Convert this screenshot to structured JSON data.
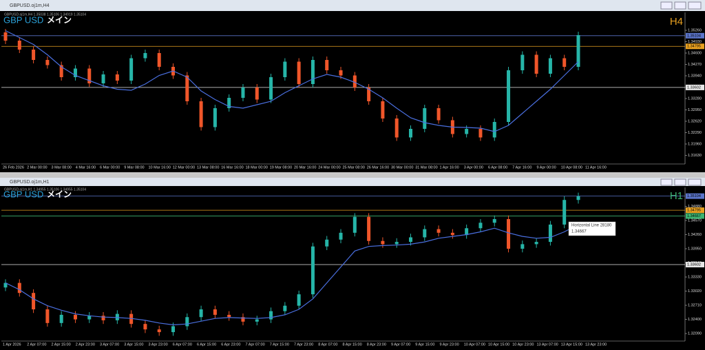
{
  "windows": [
    {
      "title": "GBPUSD.oj1m,H4",
      "info": "GBPUSD.oj1m,H4  1.35038 1.35106 1.34919 1.35104",
      "symbol": "GBP USD",
      "label": "メイン",
      "timeframe": "H4",
      "timeframe_color": "#e8a020",
      "ylim": [
        1.315,
        1.357
      ],
      "yticks": [
        {
          "value": 1.3526,
          "label": "1.35260"
        },
        {
          "value": 1.3493,
          "label": "1.34930"
        },
        {
          "value": 1.346,
          "label": "1.34600"
        },
        {
          "value": 1.3427,
          "label": "1.34270"
        },
        {
          "value": 1.3394,
          "label": "1.33940"
        },
        {
          "value": 1.3361,
          "label": "1.33610"
        },
        {
          "value": 1.3328,
          "label": "1.33280"
        },
        {
          "value": 1.3295,
          "label": "1.32950"
        },
        {
          "value": 1.3262,
          "label": "1.32620"
        },
        {
          "value": 1.3229,
          "label": "1.32290"
        },
        {
          "value": 1.3196,
          "label": "1.31960"
        },
        {
          "value": 1.3163,
          "label": "1.31630"
        }
      ],
      "xticks": [
        "26 Feb 2026",
        "2 Mar 00:00",
        "3 Mar 08:00",
        "4 Mar 16:00",
        "6 Mar 00:00",
        "9 Mar 08:00",
        "10 Mar 16:00",
        "12 Mar 00:00",
        "13 Mar 08:00",
        "16 Mar 16:00",
        "18 Mar 00:00",
        "19 Mar 08:00",
        "20 Mar 16:00",
        "24 Mar 00:00",
        "25 Mar 08:00",
        "26 Mar 16:00",
        "30 Mar 00:00",
        "31 Mar 08:00",
        "1 Apr 16:00",
        "3 Apr 00:00",
        "6 Apr 08:00",
        "7 Apr 16:00",
        "9 Apr 00:00",
        "10 Apr 08:00",
        "11 Apr 16:00"
      ],
      "open": [
        1.352,
        1.3496,
        1.347,
        1.344,
        1.3425,
        1.339,
        1.3415,
        1.3372,
        1.3398,
        1.338,
        1.3445,
        1.346,
        1.342,
        1.3395,
        1.332,
        1.3245,
        1.33,
        1.333,
        1.336,
        1.3325,
        1.339,
        1.3435,
        1.337,
        1.344,
        1.341,
        1.3395,
        1.336,
        1.332,
        1.327,
        1.3215,
        1.324,
        1.33,
        1.3265,
        1.3225,
        1.324,
        1.3215,
        1.326,
        1.341,
        1.3455,
        1.34,
        1.3445,
        1.342
      ],
      "high": [
        1.353,
        1.3506,
        1.348,
        1.345,
        1.3435,
        1.3425,
        1.3425,
        1.3408,
        1.3408,
        1.3455,
        1.347,
        1.347,
        1.343,
        1.3405,
        1.333,
        1.331,
        1.334,
        1.337,
        1.337,
        1.34,
        1.3445,
        1.3445,
        1.345,
        1.345,
        1.342,
        1.3405,
        1.337,
        1.333,
        1.328,
        1.325,
        1.331,
        1.331,
        1.3275,
        1.325,
        1.325,
        1.327,
        1.342,
        1.3465,
        1.3465,
        1.3455,
        1.3455,
        1.3522
      ],
      "low": [
        1.3486,
        1.346,
        1.343,
        1.3415,
        1.338,
        1.338,
        1.3362,
        1.3362,
        1.337,
        1.337,
        1.3435,
        1.341,
        1.3385,
        1.331,
        1.3235,
        1.3235,
        1.329,
        1.332,
        1.3315,
        1.3315,
        1.338,
        1.336,
        1.336,
        1.34,
        1.3385,
        1.335,
        1.331,
        1.326,
        1.3205,
        1.3205,
        1.323,
        1.3255,
        1.3215,
        1.3215,
        1.3205,
        1.3205,
        1.325,
        1.34,
        1.339,
        1.339,
        1.341,
        1.341
      ],
      "close": [
        1.3496,
        1.347,
        1.344,
        1.3425,
        1.339,
        1.3415,
        1.3372,
        1.3398,
        1.338,
        1.3445,
        1.346,
        1.342,
        1.3395,
        1.332,
        1.3245,
        1.33,
        1.333,
        1.336,
        1.3325,
        1.339,
        1.3435,
        1.337,
        1.344,
        1.341,
        1.3395,
        1.336,
        1.332,
        1.327,
        1.3215,
        1.324,
        1.33,
        1.3265,
        1.3225,
        1.324,
        1.3215,
        1.326,
        1.341,
        1.3455,
        1.34,
        1.3445,
        1.342,
        1.3512
      ],
      "ma": [
        1.3525,
        1.3505,
        1.3485,
        1.3455,
        1.342,
        1.3395,
        1.338,
        1.3365,
        1.3355,
        1.3352,
        1.337,
        1.3395,
        1.3408,
        1.339,
        1.335,
        1.3325,
        1.3305,
        1.33,
        1.331,
        1.332,
        1.3345,
        1.3365,
        1.3385,
        1.3398,
        1.339,
        1.3375,
        1.3355,
        1.333,
        1.33,
        1.3272,
        1.3258,
        1.325,
        1.3245,
        1.3244,
        1.3242,
        1.3232,
        1.325,
        1.3285,
        1.332,
        1.3355,
        1.3395,
        1.3435
      ],
      "hlines": [
        {
          "value": 1.35104,
          "color": "#5b74c9"
        },
        {
          "value": 1.34795,
          "color": "#e8a020"
        },
        {
          "value": 1.33602,
          "color": "#e6e6e6"
        }
      ]
    },
    {
      "title": "GBPUSD.oj1m,H1",
      "info": "GBPUSD.oj1m,H1  1.34955 1.35106 1.34955 1.35104",
      "symbol": "GBP USD",
      "label": "メイン",
      "timeframe": "H1",
      "timeframe_color": "#3cb371",
      "ylim": [
        1.3197,
        1.3525
      ],
      "yticks": [
        {
          "value": 1.3488,
          "label": "1.34880"
        },
        {
          "value": 1.3457,
          "label": "1.34570"
        },
        {
          "value": 1.3426,
          "label": "1.34260"
        },
        {
          "value": 1.3395,
          "label": "1.33950"
        },
        {
          "value": 1.3364,
          "label": "1.33640"
        },
        {
          "value": 1.3333,
          "label": "1.33330"
        },
        {
          "value": 1.3302,
          "label": "1.33020"
        },
        {
          "value": 1.3271,
          "label": "1.32710"
        },
        {
          "value": 1.324,
          "label": "1.32400"
        },
        {
          "value": 1.3209,
          "label": "1.32090"
        }
      ],
      "xticks": [
        "1 Apr 2026",
        "2 Apr 07:00",
        "2 Apr 15:00",
        "2 Apr 23:00",
        "3 Apr 07:00",
        "3 Apr 15:00",
        "3 Apr 23:00",
        "6 Apr 07:00",
        "6 Apr 15:00",
        "6 Apr 23:00",
        "7 Apr 07:00",
        "7 Apr 15:00",
        "7 Apr 23:00",
        "8 Apr 07:00",
        "8 Apr 15:00",
        "8 Apr 23:00",
        "9 Apr 07:00",
        "9 Apr 15:00",
        "9 Apr 23:00",
        "10 Apr 07:00",
        "10 Apr 15:00",
        "10 Apr 23:00",
        "13 Apr 07:00",
        "13 Apr 15:00",
        "13 Apr 23:00"
      ],
      "open": [
        1.331,
        1.332,
        1.3298,
        1.3262,
        1.3232,
        1.325,
        1.324,
        1.3248,
        1.3238,
        1.3252,
        1.323,
        1.3218,
        1.3212,
        1.3225,
        1.3245,
        1.3262,
        1.325,
        1.3245,
        1.3235,
        1.324,
        1.3258,
        1.327,
        1.3295,
        1.34,
        1.3415,
        1.343,
        1.3465,
        1.3412,
        1.3405,
        1.341,
        1.342,
        1.3438,
        1.343,
        1.3425,
        1.344,
        1.3452,
        1.346,
        1.3395,
        1.3405,
        1.341,
        1.3448,
        1.3502
      ],
      "high": [
        1.3328,
        1.3328,
        1.3306,
        1.327,
        1.3258,
        1.3258,
        1.3256,
        1.3256,
        1.326,
        1.326,
        1.3238,
        1.3226,
        1.3233,
        1.3253,
        1.327,
        1.327,
        1.3258,
        1.3253,
        1.3248,
        1.3266,
        1.3278,
        1.3303,
        1.3408,
        1.3423,
        1.3438,
        1.3473,
        1.3473,
        1.342,
        1.3418,
        1.3428,
        1.3446,
        1.3446,
        1.3438,
        1.3448,
        1.346,
        1.3468,
        1.3468,
        1.3413,
        1.3418,
        1.3456,
        1.351,
        1.3518
      ],
      "low": [
        1.3302,
        1.329,
        1.3254,
        1.3224,
        1.3224,
        1.3232,
        1.3232,
        1.323,
        1.323,
        1.3222,
        1.321,
        1.3204,
        1.3204,
        1.3217,
        1.3237,
        1.3242,
        1.3237,
        1.3227,
        1.3227,
        1.3232,
        1.325,
        1.3262,
        1.3287,
        1.3392,
        1.3407,
        1.3422,
        1.3404,
        1.3397,
        1.3397,
        1.3402,
        1.3412,
        1.3422,
        1.3417,
        1.3417,
        1.3432,
        1.3444,
        1.3387,
        1.3387,
        1.3397,
        1.3402,
        1.344,
        1.3494
      ],
      "close": [
        1.332,
        1.3298,
        1.3262,
        1.3232,
        1.325,
        1.324,
        1.3248,
        1.3238,
        1.3252,
        1.323,
        1.3218,
        1.3212,
        1.3225,
        1.3245,
        1.3262,
        1.325,
        1.3245,
        1.3235,
        1.324,
        1.3258,
        1.327,
        1.3295,
        1.34,
        1.3415,
        1.343,
        1.3465,
        1.3412,
        1.3405,
        1.341,
        1.342,
        1.3438,
        1.343,
        1.3425,
        1.344,
        1.3452,
        1.346,
        1.3395,
        1.3405,
        1.341,
        1.3448,
        1.3502,
        1.351
      ],
      "ma": [
        1.332,
        1.3305,
        1.3285,
        1.327,
        1.326,
        1.3252,
        1.3248,
        1.3245,
        1.3244,
        1.3242,
        1.3238,
        1.3232,
        1.3228,
        1.323,
        1.3236,
        1.3242,
        1.3244,
        1.3243,
        1.3242,
        1.3244,
        1.325,
        1.3262,
        1.3285,
        1.332,
        1.3355,
        1.339,
        1.34,
        1.3402,
        1.3403,
        1.3405,
        1.341,
        1.3418,
        1.3422,
        1.3426,
        1.3432,
        1.344,
        1.343,
        1.3422,
        1.3418,
        1.342,
        1.3432,
        1.3448
      ],
      "hlines": [
        {
          "value": 1.35104,
          "color": "#5b74c9"
        },
        {
          "value": 1.34795,
          "color": "#e8a020"
        },
        {
          "value": 1.34667,
          "color": "#3cb371"
        },
        {
          "value": 1.33602,
          "color": "#e6e6e6"
        }
      ],
      "tooltip": {
        "title": "Horizontal Line 28180",
        "value": 1.34667
      }
    }
  ]
}
